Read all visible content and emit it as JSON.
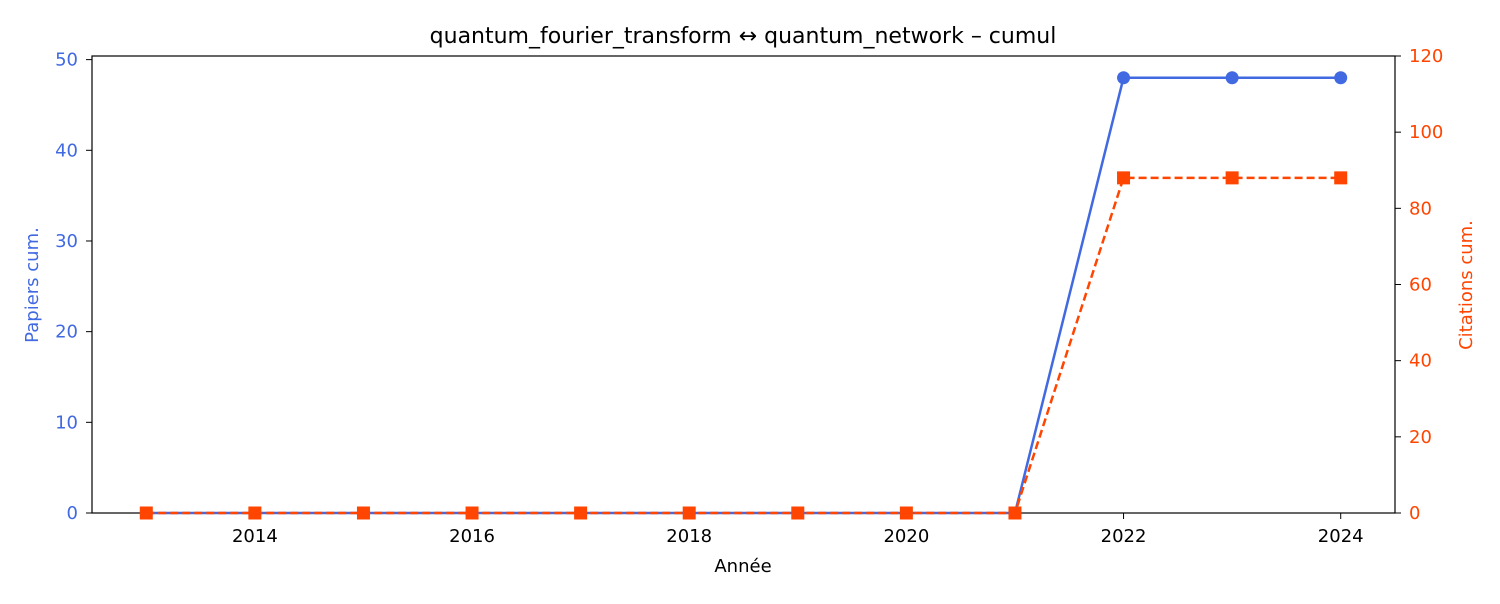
{
  "chart_data": {
    "type": "line",
    "title": "quantum_fourier_transform  ↔  quantum_network  –  cumul",
    "xlabel": "Année",
    "ylabel_left": "Papiers cum.",
    "ylabel_right": "Citations cum.",
    "x": [
      2013,
      2014,
      2015,
      2016,
      2017,
      2018,
      2019,
      2020,
      2021,
      2022,
      2023,
      2024
    ],
    "x_ticks": [
      2014,
      2016,
      2018,
      2020,
      2022,
      2024
    ],
    "x_range": [
      2012.5,
      2024.5
    ],
    "y_left_ticks": [
      0,
      10,
      20,
      30,
      40,
      50
    ],
    "y_left_range": [
      0,
      50.4
    ],
    "y_right_ticks": [
      0,
      20,
      40,
      60,
      80,
      100,
      120
    ],
    "y_right_range": [
      0,
      120
    ],
    "grid": false,
    "series": [
      {
        "axis": "left",
        "color": "#4169e1",
        "marker": "circle",
        "line_style": "solid",
        "values": [
          0,
          0,
          0,
          0,
          0,
          0,
          0,
          0,
          0,
          48,
          48,
          48
        ]
      },
      {
        "axis": "right",
        "color": "#ff4500",
        "marker": "square",
        "line_style": "dashed",
        "values": [
          0,
          0,
          0,
          0,
          0,
          0,
          0,
          0,
          0,
          88,
          88,
          88
        ]
      }
    ]
  }
}
